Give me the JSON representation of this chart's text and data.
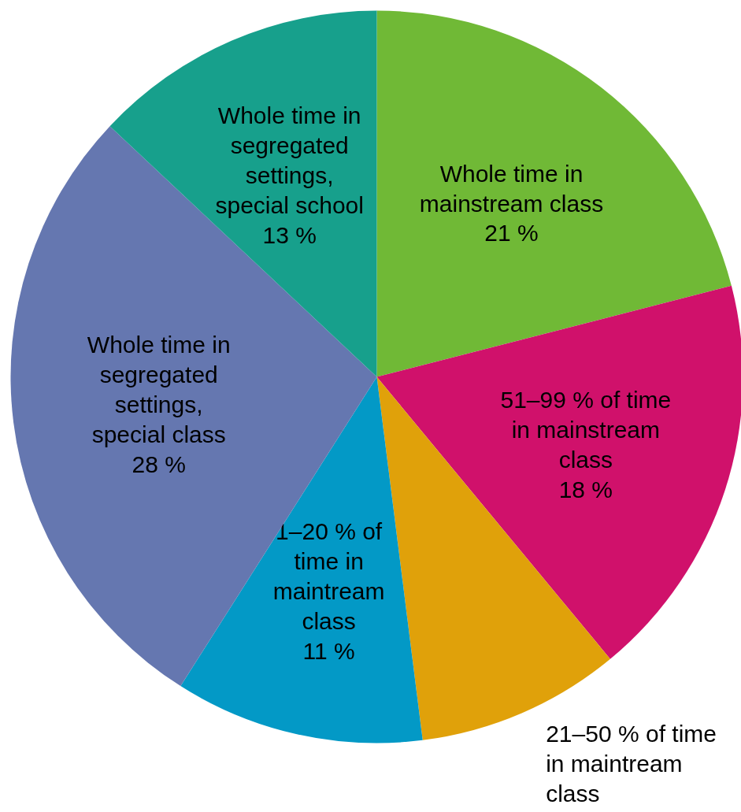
{
  "chart_data": {
    "type": "pie",
    "categories": [
      "Whole time in mainstream class",
      "51–99 % of time in mainstream class",
      "21–50 % of time in maintream class",
      "1–20 % of time in maintream class",
      "Whole time in segregated settings, special class",
      "Whole time in segregated settings, special school"
    ],
    "values": [
      21,
      18,
      9,
      11,
      28,
      13
    ],
    "colors": [
      "#70b936",
      "#d0116b",
      "#e0a10a",
      "#0399c6",
      "#6577b0",
      "#17a08c"
    ],
    "value_labels": [
      "21 %",
      "18 %",
      null,
      "11 %",
      "28 %",
      "13 %"
    ]
  }
}
